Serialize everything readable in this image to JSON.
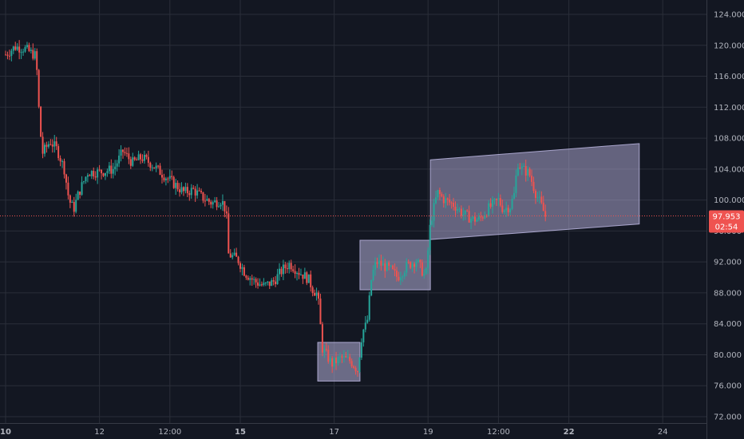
{
  "chart_data": {
    "type": "candlestick",
    "colors": {
      "background": "#131722",
      "grid": "#2a2e39",
      "up": "#26a69a",
      "down": "#ef5350",
      "box_fill": "#b5b0d9",
      "price_line": "#ef5350",
      "axis_text": "#b2b5be",
      "axis_line": "#363a45"
    },
    "y_axis": {
      "min": 72,
      "max": 124,
      "ticks": [
        "124.000",
        "120.000",
        "116.000",
        "112.000",
        "108.000",
        "104.000",
        "100.000",
        "96.000",
        "92.000",
        "88.000",
        "84.000",
        "80.000",
        "76.000",
        "72.000"
      ]
    },
    "x_axis": {
      "start": 10,
      "end": 25,
      "ticks": [
        {
          "label": "10",
          "pos": 10,
          "bold": true
        },
        {
          "label": "12",
          "pos": 12,
          "bold": false
        },
        {
          "label": "12:00",
          "pos": 13.5,
          "bold": false
        },
        {
          "label": "15",
          "pos": 15,
          "bold": true
        },
        {
          "label": "17",
          "pos": 17,
          "bold": false
        },
        {
          "label": "19",
          "pos": 19,
          "bold": false
        },
        {
          "label": "12:00",
          "pos": 20.5,
          "bold": false
        },
        {
          "label": "22",
          "pos": 22,
          "bold": true
        },
        {
          "label": "24",
          "pos": 24,
          "bold": false
        }
      ]
    },
    "current_price": {
      "value": 97.953,
      "label": "97.953",
      "countdown": "02:54"
    },
    "rectangles": [
      {
        "x0": 16.65,
        "x1": 17.55,
        "y0": 76.6,
        "y1": 81.6
      },
      {
        "x0": 17.55,
        "x1": 19.05,
        "y0": 88.4,
        "y1": 94.8
      }
    ],
    "channel": {
      "x0": 19.05,
      "x1": 23.5,
      "top0": 105.2,
      "top1": 107.3,
      "bot0": 94.9,
      "bot1": 96.9
    },
    "series_path": [
      [
        10.0,
        118.8
      ],
      [
        10.2,
        119.8
      ],
      [
        10.4,
        119.6
      ],
      [
        10.55,
        119.0
      ],
      [
        10.65,
        118.6
      ],
      [
        10.72,
        110.5
      ],
      [
        10.78,
        106.0
      ],
      [
        10.95,
        107.6
      ],
      [
        11.1,
        106.5
      ],
      [
        11.25,
        104.0
      ],
      [
        11.35,
        100.0
      ],
      [
        11.45,
        98.8
      ],
      [
        11.55,
        100.8
      ],
      [
        11.75,
        103.6
      ],
      [
        12.0,
        103.6
      ],
      [
        12.3,
        104.0
      ],
      [
        12.5,
        106.3
      ],
      [
        12.7,
        104.8
      ],
      [
        12.9,
        105.5
      ],
      [
        13.1,
        104.7
      ],
      [
        13.3,
        103.6
      ],
      [
        13.55,
        102.3
      ],
      [
        13.8,
        101.0
      ],
      [
        14.0,
        101.3
      ],
      [
        14.2,
        100.3
      ],
      [
        14.4,
        99.6
      ],
      [
        14.6,
        100.0
      ],
      [
        14.7,
        98.5
      ],
      [
        14.75,
        93.0
      ],
      [
        14.95,
        92.3
      ],
      [
        15.1,
        90.6
      ],
      [
        15.3,
        89.5
      ],
      [
        15.5,
        88.9
      ],
      [
        15.7,
        89.4
      ],
      [
        15.9,
        91.0
      ],
      [
        16.05,
        91.8
      ],
      [
        16.25,
        90.7
      ],
      [
        16.45,
        89.8
      ],
      [
        16.55,
        88.4
      ],
      [
        16.65,
        87.8
      ],
      [
        16.75,
        80.8
      ],
      [
        16.95,
        78.8
      ],
      [
        17.15,
        79.6
      ],
      [
        17.35,
        79.2
      ],
      [
        17.5,
        78.0
      ],
      [
        17.6,
        83.0
      ],
      [
        17.7,
        84.0
      ],
      [
        17.8,
        90.2
      ],
      [
        17.9,
        92.0
      ],
      [
        18.05,
        91.5
      ],
      [
        18.2,
        91.0
      ],
      [
        18.35,
        90.0
      ],
      [
        18.55,
        91.5
      ],
      [
        18.75,
        92.2
      ],
      [
        18.95,
        90.0
      ],
      [
        19.05,
        97.0
      ],
      [
        19.2,
        101.0
      ],
      [
        19.35,
        100.0
      ],
      [
        19.55,
        99.4
      ],
      [
        19.75,
        98.2
      ],
      [
        19.95,
        97.5
      ],
      [
        20.1,
        97.5
      ],
      [
        20.3,
        99.0
      ],
      [
        20.5,
        100.0
      ],
      [
        20.6,
        98.8
      ],
      [
        20.75,
        99.2
      ],
      [
        20.85,
        101.0
      ],
      [
        20.9,
        105.0
      ],
      [
        21.0,
        104.0
      ],
      [
        21.15,
        103.5
      ],
      [
        21.3,
        100.8
      ],
      [
        21.4,
        99.5
      ],
      [
        21.5,
        97.9
      ]
    ]
  }
}
